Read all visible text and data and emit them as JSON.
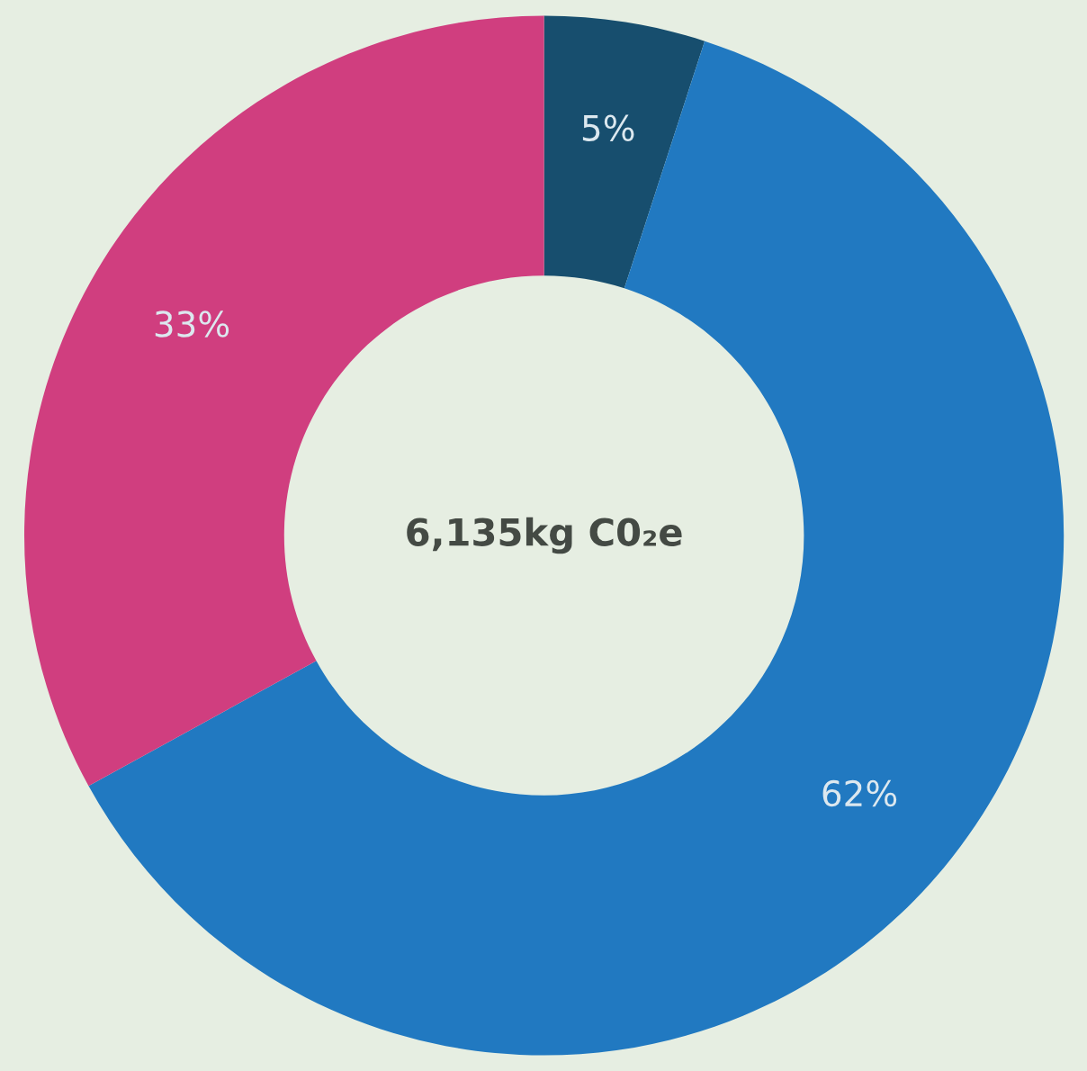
{
  "chart_data": {
    "type": "donut",
    "categories": [
      null,
      null,
      null
    ],
    "values": [
      5,
      62,
      33
    ],
    "colors": [
      "#174e6e",
      "#2179c1",
      "#d03e7f"
    ],
    "value_labels": [
      "5%",
      "62%",
      "33%"
    ],
    "annotations": [
      "6,135kg C0₂e"
    ]
  }
}
